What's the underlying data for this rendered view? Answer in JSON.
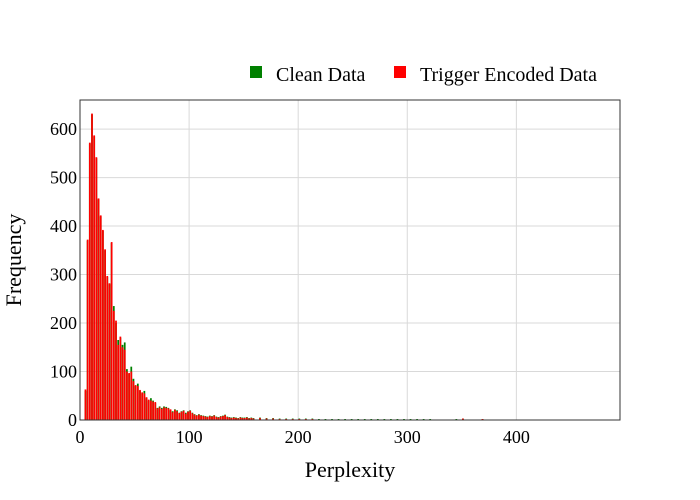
{
  "chart_data": {
    "type": "bar",
    "xlabel": "Perplexity",
    "ylabel": "Frequency",
    "xlim": [
      0,
      495
    ],
    "ylim": [
      0,
      660
    ],
    "x_ticks": [
      0,
      100,
      200,
      300,
      400
    ],
    "y_ticks": [
      0,
      100,
      200,
      300,
      400,
      500,
      600
    ],
    "grid": true,
    "legend_position": "top-right",
    "bin_width": 2,
    "series": [
      {
        "name": "Clean Data",
        "color": "#008000",
        "x": [
          5,
          7,
          9,
          11,
          13,
          15,
          17,
          19,
          21,
          23,
          25,
          27,
          29,
          31,
          33,
          35,
          37,
          39,
          41,
          43,
          45,
          47,
          49,
          51,
          53,
          55,
          57,
          59,
          61,
          63,
          65,
          67,
          69,
          71,
          73,
          75,
          77,
          79,
          81,
          83,
          85,
          87,
          89,
          91,
          93,
          95,
          97,
          99,
          101,
          103,
          105,
          107,
          109,
          111,
          113,
          115,
          117,
          119,
          121,
          123,
          125,
          127,
          129,
          131,
          133,
          135,
          137,
          139,
          141,
          143,
          145,
          147,
          149,
          151,
          153,
          155,
          157,
          159,
          165,
          171,
          177,
          183,
          189,
          195,
          201,
          207,
          213,
          219,
          225,
          231,
          237,
          243,
          249,
          255,
          261,
          267,
          273,
          279,
          285,
          291,
          297,
          303,
          309,
          315,
          321,
          327,
          333,
          339,
          345,
          351,
          357,
          363,
          369,
          375,
          381,
          387,
          393,
          399,
          405,
          411,
          417,
          423,
          429,
          435,
          441,
          447,
          453,
          459,
          465,
          471,
          477
        ],
        "values": [
          60,
          370,
          570,
          630,
          585,
          540,
          455,
          420,
          390,
          350,
          295,
          280,
          365,
          235,
          200,
          165,
          170,
          155,
          160,
          105,
          95,
          110,
          85,
          70,
          75,
          60,
          55,
          60,
          45,
          40,
          45,
          40,
          35,
          25,
          28,
          25,
          28,
          27,
          25,
          20,
          18,
          22,
          20,
          15,
          18,
          20,
          15,
          18,
          20,
          15,
          12,
          10,
          12,
          10,
          9,
          8,
          7,
          9,
          8,
          10,
          7,
          6,
          8,
          9,
          11,
          7,
          6,
          5,
          6,
          5,
          4,
          6,
          5,
          5,
          6,
          4,
          5,
          4,
          5,
          4,
          4,
          3,
          3,
          3,
          3,
          3,
          3,
          2,
          2,
          2,
          2,
          2,
          2,
          2,
          2,
          2,
          2,
          2,
          2,
          2,
          2,
          2,
          2,
          2,
          2,
          1,
          1,
          1,
          2,
          3,
          1,
          1,
          2,
          1,
          1,
          1,
          1,
          1,
          1,
          1,
          1,
          1,
          1,
          1,
          1,
          1,
          1,
          1,
          1,
          1,
          1
        ]
      },
      {
        "name": "Trigger Encoded Data",
        "color": "#ff0000",
        "x": [
          5,
          7,
          9,
          11,
          13,
          15,
          17,
          19,
          21,
          23,
          25,
          27,
          29,
          31,
          33,
          35,
          37,
          39,
          41,
          43,
          45,
          47,
          49,
          51,
          53,
          55,
          57,
          59,
          61,
          63,
          65,
          67,
          69,
          71,
          73,
          75,
          77,
          79,
          81,
          83,
          85,
          87,
          89,
          91,
          93,
          95,
          97,
          99,
          101,
          103,
          105,
          107,
          109,
          111,
          113,
          115,
          117,
          119,
          121,
          123,
          125,
          127,
          129,
          131,
          133,
          135,
          137,
          139,
          141,
          143,
          145,
          147,
          149,
          151,
          153,
          155,
          157,
          159,
          165,
          171,
          177,
          183,
          189,
          195,
          201,
          207,
          213,
          219,
          225,
          231,
          237,
          243,
          249,
          255,
          261,
          267,
          273,
          279,
          285,
          291,
          297,
          303,
          309,
          315,
          321,
          327,
          333,
          339,
          345,
          351,
          357,
          363,
          369,
          375,
          381,
          387,
          393,
          399,
          405,
          411,
          417,
          423,
          429,
          435,
          441,
          447,
          453,
          459,
          465,
          471,
          477
        ],
        "values": [
          63,
          372,
          572,
          632,
          587,
          542,
          457,
          422,
          392,
          352,
          297,
          282,
          367,
          225,
          205,
          155,
          172,
          150,
          145,
          100,
          97,
          100,
          80,
          72,
          70,
          62,
          57,
          55,
          47,
          42,
          40,
          38,
          37,
          24,
          26,
          23,
          26,
          25,
          24,
          22,
          16,
          21,
          18,
          14,
          17,
          19,
          13,
          17,
          19,
          14,
          11,
          9,
          11,
          9,
          8,
          7,
          6,
          8,
          7,
          9,
          6,
          5,
          7,
          8,
          10,
          6,
          5,
          4,
          5,
          4,
          3,
          5,
          4,
          4,
          5,
          3,
          4,
          3,
          4,
          3,
          3,
          2,
          2,
          2,
          2,
          2,
          2,
          1,
          1,
          1,
          1,
          1,
          1,
          1,
          1,
          1,
          1,
          1,
          1,
          1,
          1,
          1,
          1,
          1,
          1,
          1,
          1,
          1,
          1,
          3,
          1,
          1,
          2,
          1,
          1,
          1,
          1,
          1,
          1,
          1,
          1,
          1,
          1,
          1,
          1,
          1,
          1,
          1,
          1,
          1,
          1
        ]
      }
    ]
  }
}
